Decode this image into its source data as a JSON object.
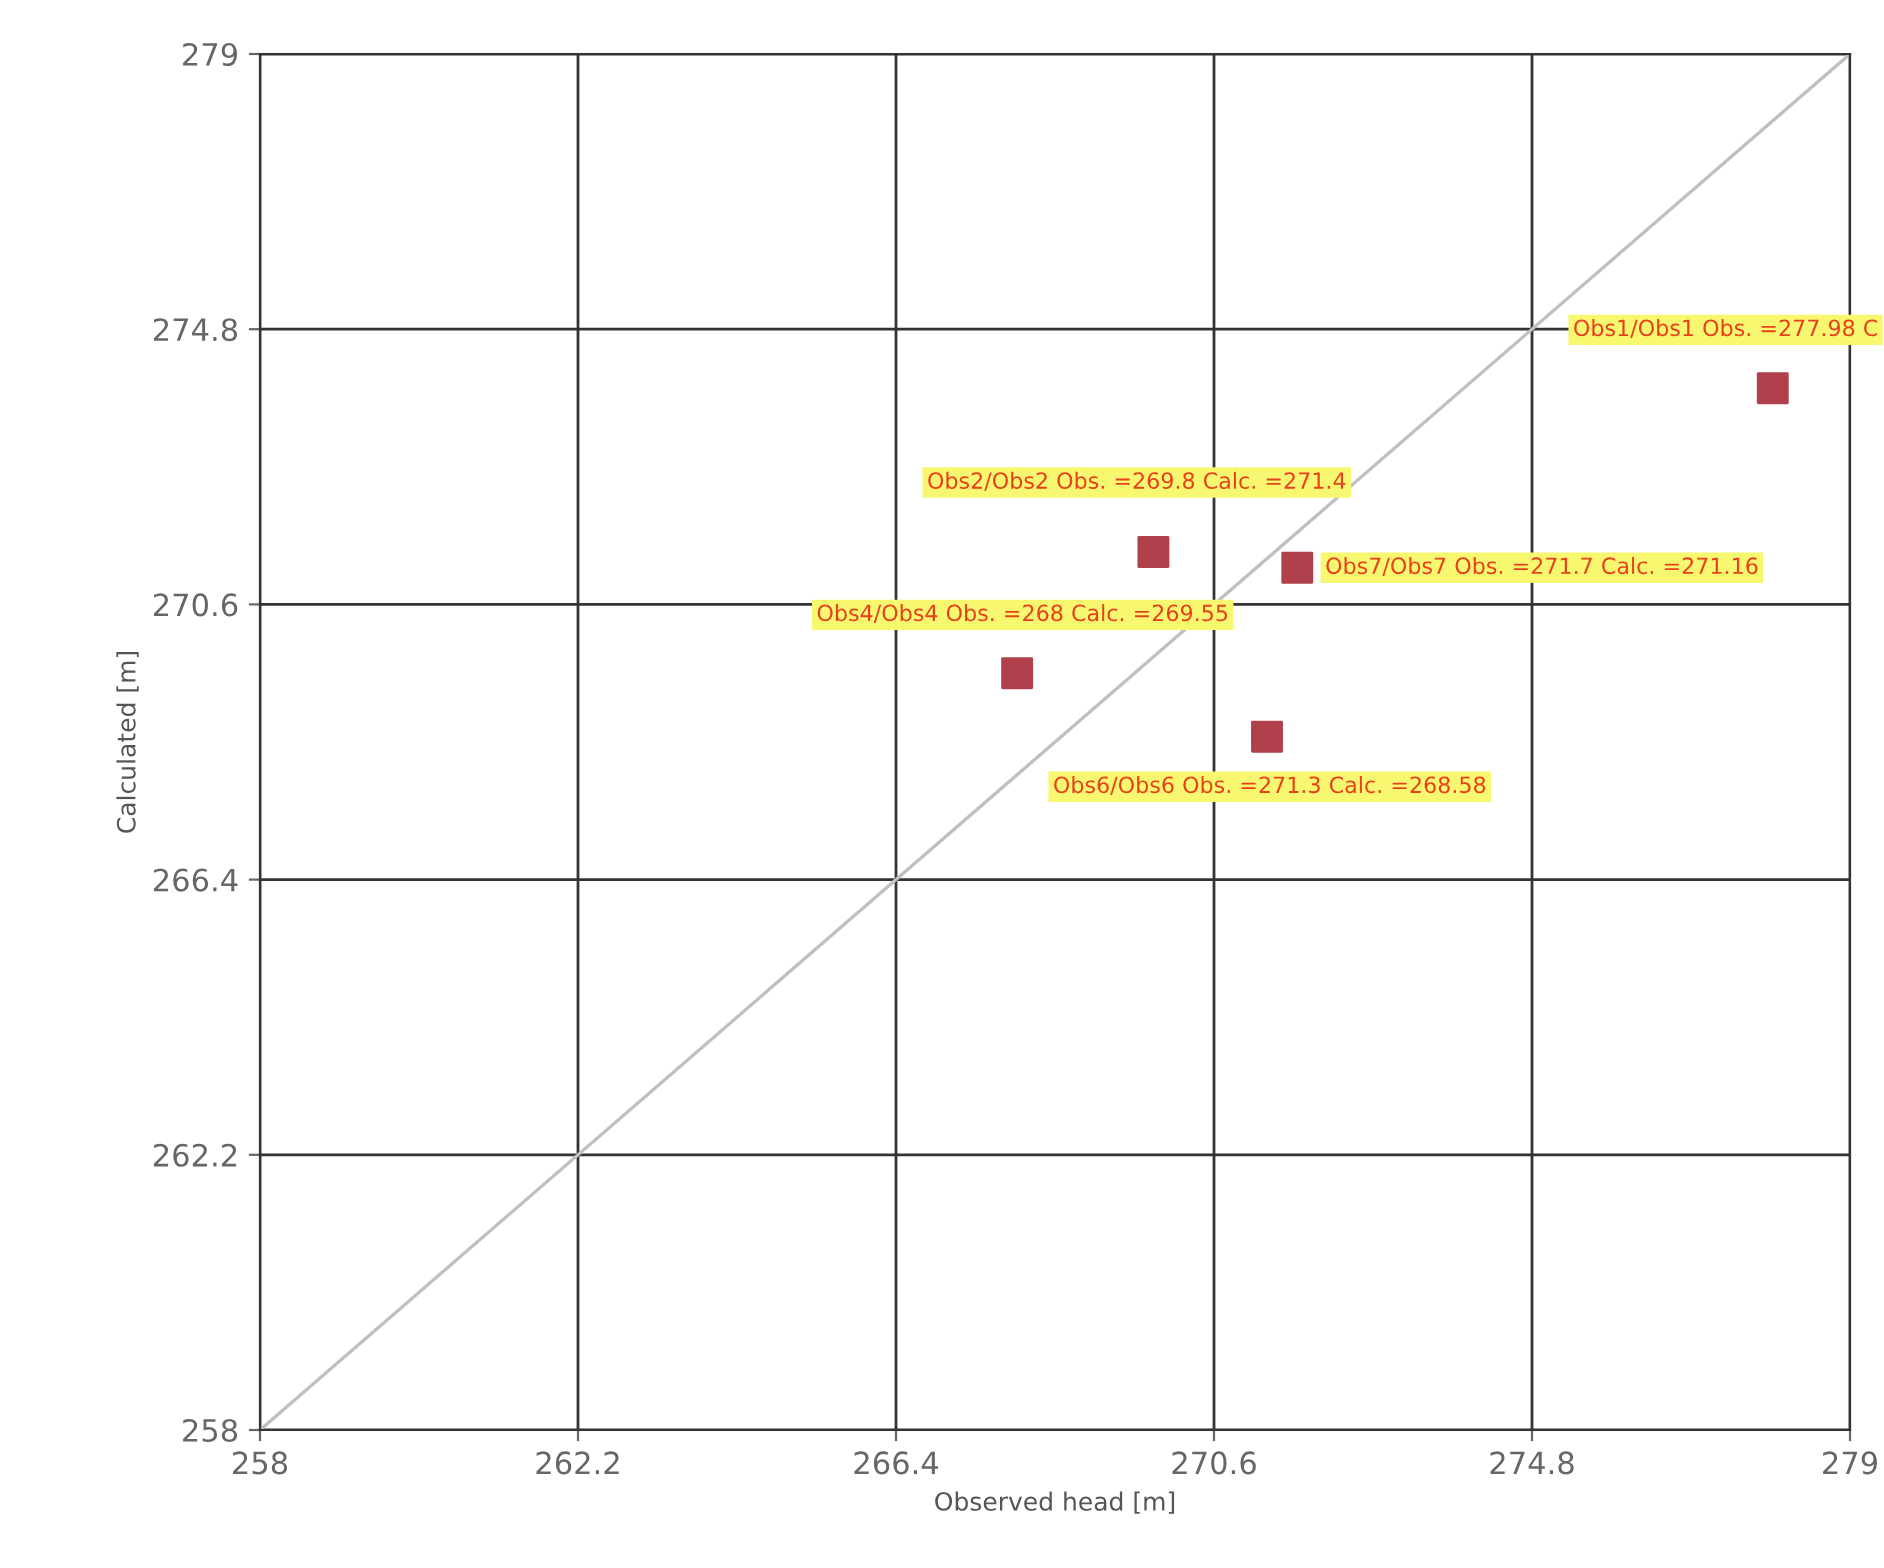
{
  "chart_data": {
    "type": "scatter",
    "xlabel": "Observed head [m]",
    "ylabel": "Calculated [m]",
    "xlim": [
      258,
      279
    ],
    "ylim": [
      258,
      279
    ],
    "xticks": [
      258,
      262.2,
      266.4,
      270.6,
      274.8,
      279
    ],
    "yticks": [
      258,
      262.2,
      266.4,
      270.6,
      274.8,
      279
    ],
    "grid": true,
    "marker": "square",
    "series": [
      {
        "type": "line",
        "color": "#c0c0c0",
        "x": [
          258,
          279
        ],
        "values": [
          258,
          279
        ],
        "marker": "none"
      },
      {
        "color": "#b0404c",
        "x": [
          277.98,
          269.8,
          271.7,
          268,
          271.3
        ],
        "values": [
          273.9,
          271.4,
          271.16,
          269.55,
          268.58
        ]
      }
    ],
    "annotations": [
      {
        "text": "Obs1/Obs1 Obs. =277.98 C",
        "x": 277.98,
        "y": 273.9
      },
      {
        "text": "Obs2/Obs2 Obs. =269.8 Calc. =271.4",
        "x": 269.8,
        "y": 271.4
      },
      {
        "text": "Obs7/Obs7 Obs. =271.7 Calc. =271.16",
        "x": 271.7,
        "y": 271.16
      },
      {
        "text": "Obs4/Obs4 Obs. =268 Calc. =269.55",
        "x": 268,
        "y": 269.55
      },
      {
        "text": "Obs6/Obs6 Obs. =271.3 Calc. =268.58",
        "x": 271.3,
        "y": 268.58
      }
    ]
  }
}
